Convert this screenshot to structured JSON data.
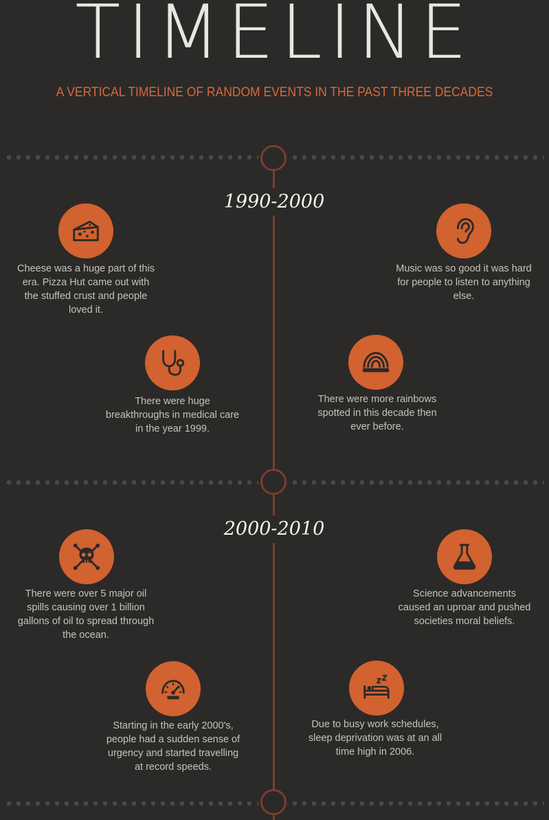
{
  "header": {
    "title": "TIMELINE",
    "subtitle": "A VERTICAL TIMELINE OF RANDOM EVENTS IN THE PAST THREE DECADES"
  },
  "colors": {
    "background": "#2b2a28",
    "accent": "#d26230",
    "spine": "#7a3e2e",
    "text": "#c3c3be"
  },
  "eras": [
    {
      "label": "1990-2000",
      "events": [
        {
          "icon": "cheese-icon",
          "text": "Cheese was a huge part of this era.  Pizza Hut came out with the stuffed crust and people loved it."
        },
        {
          "icon": "ear-icon",
          "text": "Music was so good it was hard for people to listen to anything else."
        },
        {
          "icon": "stethoscope-icon",
          "text": "There were huge breakthroughs in medical care in the year 1999."
        },
        {
          "icon": "rainbow-icon",
          "text": "There were more rainbows spotted in this decade then ever before."
        }
      ]
    },
    {
      "label": "2000-2010",
      "events": [
        {
          "icon": "skull-crossbones-icon",
          "text": "There were over 5 major oil spills causing over 1 billion gallons of oil to spread through the ocean."
        },
        {
          "icon": "flask-icon",
          "text": "Science advancements caused an uproar and pushed societies moral beliefs."
        },
        {
          "icon": "speedometer-icon",
          "text": "Starting in the early 2000's, people had a sudden sense of urgency and started travelling at record speeds."
        },
        {
          "icon": "sleeping-bed-icon",
          "text": "Due to busy work schedules, sleep deprivation was at an all time high in 2006."
        }
      ]
    }
  ]
}
